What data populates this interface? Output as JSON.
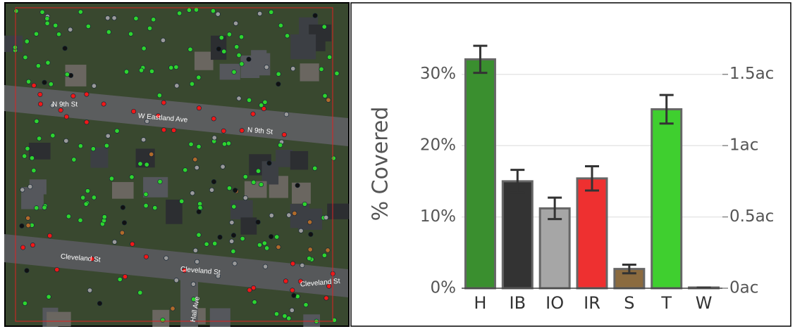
{
  "map": {
    "labels": [
      "N 9th St",
      "W Eastland Ave",
      "N 9th St",
      "Cleveland St",
      "Cleveland St",
      "Cleveland St",
      "Hall Ave"
    ]
  },
  "chart_data": {
    "type": "bar",
    "y_axis_label": "% Covered",
    "categories": [
      "H",
      "IB",
      "IO",
      "IR",
      "S",
      "T",
      "W"
    ],
    "values": [
      32.1,
      15.0,
      11.2,
      15.4,
      2.7,
      25.1,
      0.1
    ],
    "errors": [
      1.9,
      1.6,
      1.5,
      1.7,
      0.6,
      2.0,
      0
    ],
    "colors": [
      "#3a8f2f",
      "#333333",
      "#a6a6a6",
      "#ee3030",
      "#8b6b3f",
      "#3fcf2f",
      "#9a9a9a"
    ],
    "ylim": [
      0,
      35
    ],
    "yticks": [
      {
        "value": 0,
        "label": "0%"
      },
      {
        "value": 10,
        "label": "10%"
      },
      {
        "value": 20,
        "label": "20%"
      },
      {
        "value": 30,
        "label": "30%"
      }
    ],
    "y2lim": [
      0,
      1.75
    ],
    "y2ticks": [
      {
        "value": 0,
        "label": "0ac"
      },
      {
        "value": 0.5,
        "label": "0.5ac"
      },
      {
        "value": 1,
        "label": "1ac"
      },
      {
        "value": 1.5,
        "label": "1.5ac"
      }
    ],
    "grid": true
  }
}
